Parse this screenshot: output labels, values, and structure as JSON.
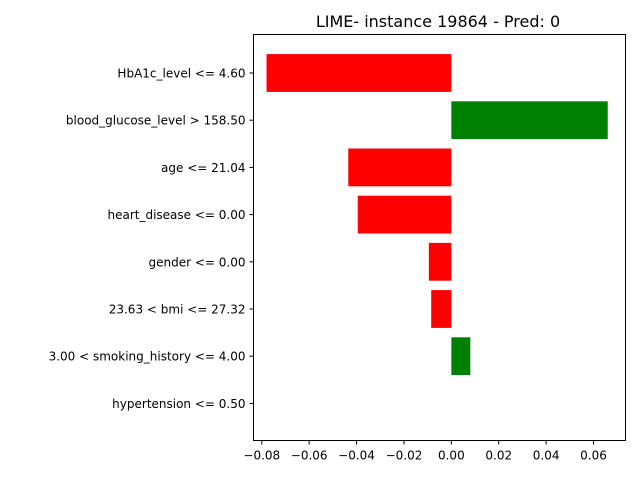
{
  "chart_data": {
    "type": "bar",
    "orientation": "horizontal",
    "title": "LIME- instance 19864 - Pred: 0",
    "xlabel": "",
    "ylabel": "",
    "categories": [
      "HbA1c_level <= 4.60",
      "blood_glucose_level > 158.50",
      "age <= 21.04",
      "heart_disease <= 0.00",
      "gender <= 0.00",
      "23.63 < bmi <= 27.32",
      "3.00 < smoking_history <= 4.00",
      "hypertension <= 0.50"
    ],
    "values": [
      -0.078,
      0.066,
      -0.0435,
      -0.0395,
      -0.0095,
      -0.0085,
      0.008,
      0.0
    ],
    "xlim": [
      -0.0835,
      0.0735
    ],
    "xticks": [
      -0.08,
      -0.06,
      -0.04,
      -0.02,
      0.0,
      0.02,
      0.04,
      0.06
    ],
    "xtick_labels": [
      "−0.08",
      "−0.06",
      "−0.04",
      "−0.02",
      "0.00",
      "0.02",
      "0.04",
      "0.06"
    ],
    "grid": false,
    "colors": {
      "positive": "#008000",
      "negative": "#ff0000"
    }
  }
}
